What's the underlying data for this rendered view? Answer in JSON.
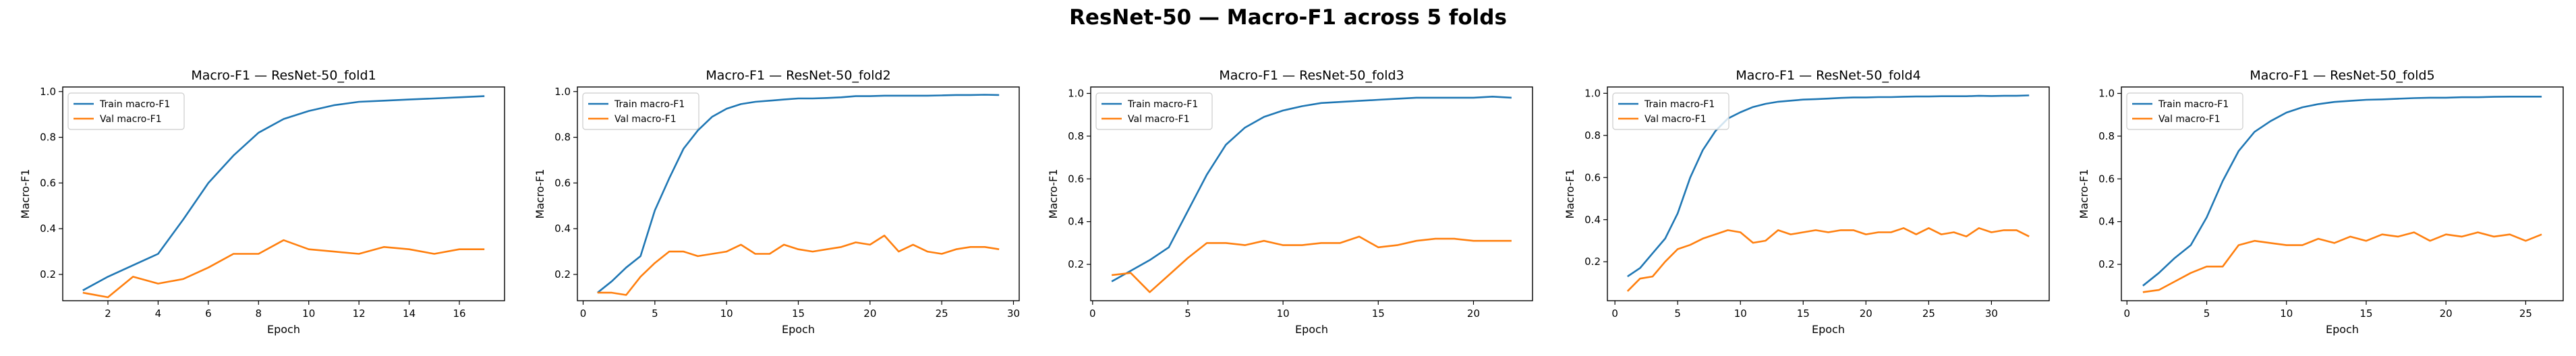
{
  "figure": {
    "title": "ResNet-50 — Macro-F1 across 5 folds"
  },
  "colors": {
    "train": "#1f77b4",
    "val": "#ff7f0e",
    "axes": "#000000",
    "legend_border": "#cccccc"
  },
  "chart_data": [
    {
      "type": "line",
      "title": "Macro-F1 — ResNet-50_fold1",
      "xlabel": "Epoch",
      "ylabel": "Macro-F1",
      "xlim": [
        0.2,
        17.8
      ],
      "ylim": [
        0.085,
        1.02
      ],
      "xticks": [
        2,
        4,
        6,
        8,
        10,
        12,
        14,
        16
      ],
      "yticks": [
        0.2,
        0.4,
        0.6,
        0.8,
        1.0
      ],
      "grid": false,
      "legend_position": "upper-left",
      "x": [
        1,
        2,
        3,
        4,
        5,
        6,
        7,
        8,
        9,
        10,
        11,
        12,
        13,
        14,
        15,
        16,
        17
      ],
      "series": [
        {
          "name": "Train macro-F1",
          "values": [
            0.13,
            0.19,
            0.24,
            0.29,
            0.44,
            0.6,
            0.72,
            0.82,
            0.88,
            0.915,
            0.94,
            0.955,
            0.96,
            0.965,
            0.97,
            0.975,
            0.98
          ]
        },
        {
          "name": "Val macro-F1",
          "values": [
            0.12,
            0.1,
            0.19,
            0.16,
            0.18,
            0.23,
            0.29,
            0.29,
            0.35,
            0.31,
            0.3,
            0.29,
            0.32,
            0.31,
            0.29,
            0.31,
            0.31
          ]
        }
      ]
    },
    {
      "type": "line",
      "title": "Macro-F1 — ResNet-50_fold2",
      "xlabel": "Epoch",
      "ylabel": "Macro-F1",
      "xlim": [
        -0.4,
        30.4
      ],
      "ylim": [
        0.085,
        1.02
      ],
      "xticks": [
        0,
        5,
        10,
        15,
        20,
        25,
        30
      ],
      "yticks": [
        0.2,
        0.4,
        0.6,
        0.8,
        1.0
      ],
      "grid": false,
      "legend_position": "upper-left",
      "x": [
        1,
        2,
        3,
        4,
        5,
        6,
        7,
        8,
        9,
        10,
        11,
        12,
        13,
        14,
        15,
        16,
        17,
        18,
        19,
        20,
        21,
        22,
        23,
        24,
        25,
        26,
        27,
        28,
        29
      ],
      "series": [
        {
          "name": "Train macro-F1",
          "values": [
            0.12,
            0.17,
            0.23,
            0.28,
            0.48,
            0.62,
            0.75,
            0.83,
            0.89,
            0.925,
            0.945,
            0.955,
            0.96,
            0.965,
            0.97,
            0.97,
            0.972,
            0.975,
            0.98,
            0.98,
            0.982,
            0.982,
            0.982,
            0.982,
            0.983,
            0.985,
            0.985,
            0.986,
            0.985
          ]
        },
        {
          "name": "Val macro-F1",
          "values": [
            0.12,
            0.12,
            0.11,
            0.19,
            0.25,
            0.3,
            0.3,
            0.28,
            0.29,
            0.3,
            0.33,
            0.29,
            0.29,
            0.33,
            0.31,
            0.3,
            0.31,
            0.32,
            0.34,
            0.33,
            0.37,
            0.3,
            0.33,
            0.3,
            0.29,
            0.31,
            0.32,
            0.32,
            0.31
          ]
        }
      ]
    },
    {
      "type": "line",
      "title": "Macro-F1 — ResNet-50_fold3",
      "xlabel": "Epoch",
      "ylabel": "Macro-F1",
      "xlim": [
        -0.1,
        23.1
      ],
      "ylim": [
        0.03,
        1.03
      ],
      "xticks": [
        0,
        5,
        10,
        15,
        20
      ],
      "yticks": [
        0.2,
        0.4,
        0.6,
        0.8,
        1.0
      ],
      "grid": false,
      "legend_position": "upper-left",
      "x": [
        1,
        2,
        3,
        4,
        5,
        6,
        7,
        8,
        9,
        10,
        11,
        12,
        13,
        14,
        15,
        16,
        17,
        18,
        19,
        20,
        21,
        22
      ],
      "series": [
        {
          "name": "Train macro-F1",
          "values": [
            0.12,
            0.17,
            0.22,
            0.28,
            0.45,
            0.62,
            0.76,
            0.84,
            0.89,
            0.92,
            0.94,
            0.955,
            0.96,
            0.965,
            0.97,
            0.975,
            0.98,
            0.98,
            0.98,
            0.98,
            0.985,
            0.98
          ]
        },
        {
          "name": "Val macro-F1",
          "values": [
            0.15,
            0.16,
            0.07,
            0.15,
            0.23,
            0.3,
            0.3,
            0.29,
            0.31,
            0.29,
            0.29,
            0.3,
            0.3,
            0.33,
            0.28,
            0.29,
            0.31,
            0.32,
            0.32,
            0.31,
            0.31,
            0.31
          ]
        }
      ]
    },
    {
      "type": "line",
      "title": "Macro-F1 — ResNet-50_fold4",
      "xlabel": "Epoch",
      "ylabel": "Macro-F1",
      "xlim": [
        -0.6,
        34.6
      ],
      "ylim": [
        0.015,
        1.03
      ],
      "xticks": [
        0,
        5,
        10,
        15,
        20,
        25,
        30
      ],
      "yticks": [
        0.2,
        0.4,
        0.6,
        0.8,
        1.0
      ],
      "grid": false,
      "legend_position": "upper-left",
      "x": [
        1,
        2,
        3,
        4,
        5,
        6,
        7,
        8,
        9,
        10,
        11,
        12,
        13,
        14,
        15,
        16,
        17,
        18,
        19,
        20,
        21,
        22,
        23,
        24,
        25,
        26,
        27,
        28,
        29,
        30,
        31,
        32,
        33
      ],
      "series": [
        {
          "name": "Train macro-F1",
          "values": [
            0.13,
            0.17,
            0.24,
            0.31,
            0.43,
            0.6,
            0.73,
            0.82,
            0.88,
            0.91,
            0.935,
            0.95,
            0.96,
            0.965,
            0.97,
            0.972,
            0.975,
            0.978,
            0.98,
            0.98,
            0.982,
            0.982,
            0.984,
            0.985,
            0.985,
            0.986,
            0.986,
            0.986,
            0.988,
            0.987,
            0.988,
            0.988,
            0.99
          ]
        },
        {
          "name": "Val macro-F1",
          "values": [
            0.06,
            0.12,
            0.13,
            0.2,
            0.26,
            0.28,
            0.31,
            0.33,
            0.35,
            0.34,
            0.29,
            0.3,
            0.35,
            0.33,
            0.34,
            0.35,
            0.34,
            0.35,
            0.35,
            0.33,
            0.34,
            0.34,
            0.36,
            0.33,
            0.36,
            0.33,
            0.34,
            0.32,
            0.36,
            0.34,
            0.35,
            0.35,
            0.32
          ]
        }
      ]
    },
    {
      "type": "line",
      "title": "Macro-F1 — ResNet-50_fold5",
      "xlabel": "Epoch",
      "ylabel": "Macro-F1",
      "xlim": [
        -0.35,
        27.35
      ],
      "ylim": [
        0.03,
        1.03
      ],
      "xticks": [
        0,
        5,
        10,
        15,
        20,
        25
      ],
      "yticks": [
        0.2,
        0.4,
        0.6,
        0.8,
        1.0
      ],
      "grid": false,
      "legend_position": "upper-left",
      "x": [
        1,
        2,
        3,
        4,
        5,
        6,
        7,
        8,
        9,
        10,
        11,
        12,
        13,
        14,
        15,
        16,
        17,
        18,
        19,
        20,
        21,
        22,
        23,
        24,
        25,
        26
      ],
      "series": [
        {
          "name": "Train macro-F1",
          "values": [
            0.1,
            0.16,
            0.23,
            0.29,
            0.42,
            0.59,
            0.73,
            0.82,
            0.87,
            0.91,
            0.935,
            0.95,
            0.96,
            0.965,
            0.97,
            0.972,
            0.975,
            0.978,
            0.98,
            0.98,
            0.982,
            0.982,
            0.984,
            0.985,
            0.985,
            0.985
          ]
        },
        {
          "name": "Val macro-F1",
          "values": [
            0.07,
            0.08,
            0.12,
            0.16,
            0.19,
            0.19,
            0.29,
            0.31,
            0.3,
            0.29,
            0.29,
            0.32,
            0.3,
            0.33,
            0.31,
            0.34,
            0.33,
            0.35,
            0.31,
            0.34,
            0.33,
            0.35,
            0.33,
            0.34,
            0.31,
            0.34
          ]
        }
      ]
    }
  ]
}
